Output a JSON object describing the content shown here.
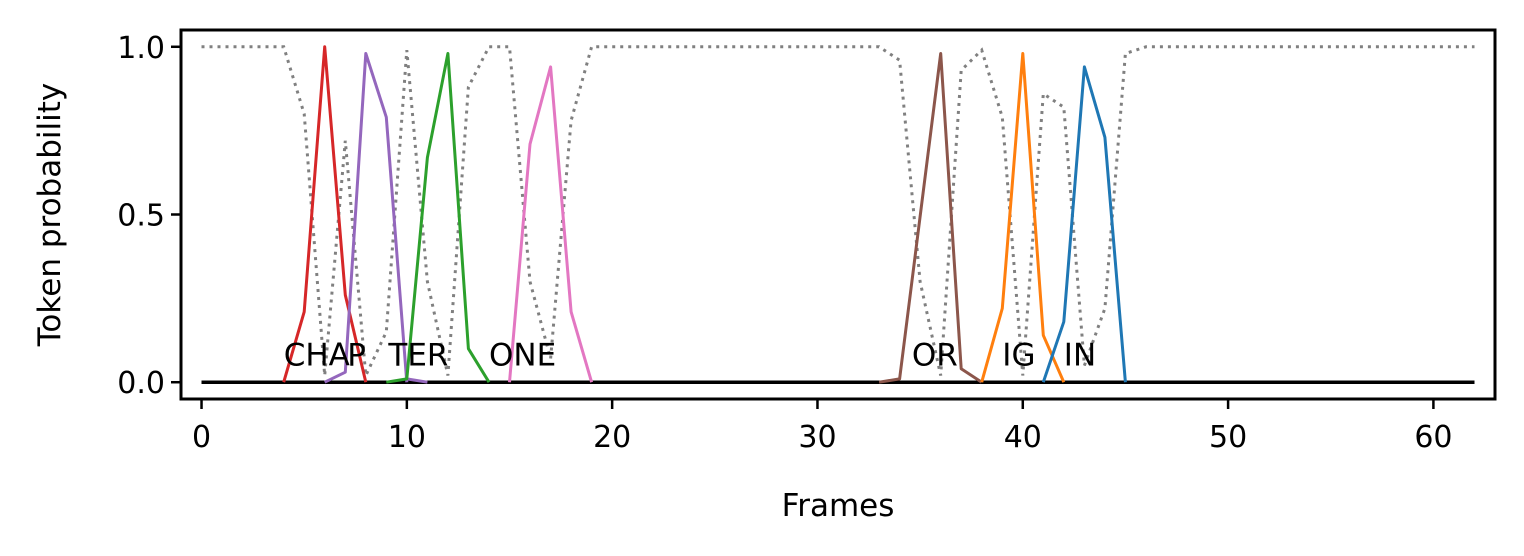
{
  "chart_data": {
    "type": "line",
    "xlabel": "Frames",
    "ylabel": "Token probability",
    "xlim": [
      -1,
      63
    ],
    "ylim": [
      -0.05,
      1.05
    ],
    "x_ticks": [
      0,
      10,
      20,
      30,
      40,
      50,
      60
    ],
    "y_ticks": [
      0.0,
      0.5,
      1.0
    ],
    "x_tick_labels": [
      "0",
      "10",
      "20",
      "30",
      "40",
      "50",
      "60"
    ],
    "y_tick_labels": [
      "0.0",
      "0.5",
      "1.0"
    ],
    "legend": "none",
    "grid": false,
    "baseline": {
      "color": "#000000",
      "x": [
        0,
        62
      ],
      "y": [
        0,
        0
      ]
    },
    "blank_series": {
      "color": "#808080",
      "style": "dotted",
      "x": [
        0,
        1,
        2,
        3,
        4,
        5,
        6,
        7,
        8,
        9,
        10,
        11,
        12,
        13,
        14,
        15,
        16,
        17,
        18,
        19,
        20,
        30,
        33,
        34,
        35,
        36,
        37,
        38,
        39,
        40,
        41,
        42,
        43,
        44,
        45,
        46,
        50,
        62
      ],
      "y": [
        1.0,
        1.0,
        1.0,
        1.0,
        1.0,
        0.8,
        0.02,
        0.72,
        0.02,
        0.15,
        0.99,
        0.3,
        0.02,
        0.88,
        1.0,
        1.0,
        0.3,
        0.07,
        0.78,
        1.0,
        1.0,
        1.0,
        1.0,
        0.96,
        0.3,
        0.02,
        0.93,
        0.99,
        0.79,
        0.02,
        0.86,
        0.82,
        0.05,
        0.22,
        0.98,
        1.0,
        1.0,
        1.0
      ]
    },
    "series": [
      {
        "color": "#d62728",
        "x": [
          4,
          5,
          6,
          7,
          8
        ],
        "y": [
          0.0,
          0.21,
          1.0,
          0.26,
          0.0
        ]
      },
      {
        "color": "#9467bd",
        "x": [
          6,
          7,
          8,
          9,
          10
        ],
        "y": [
          0.0,
          0.03,
          0.98,
          0.79,
          0.0
        ]
      },
      {
        "color": "#9467bd",
        "x": [
          10,
          11
        ],
        "y": [
          0.01,
          0.0
        ]
      },
      {
        "color": "#2ca02c",
        "x": [
          9,
          10,
          11,
          12,
          13,
          14
        ],
        "y": [
          0.0,
          0.01,
          0.67,
          0.98,
          0.1,
          0.0
        ]
      },
      {
        "color": "#e377c2",
        "x": [
          15,
          16,
          17,
          18,
          19
        ],
        "y": [
          0.0,
          0.71,
          0.94,
          0.21,
          0.0
        ]
      },
      {
        "color": "#8c564b",
        "x": [
          33,
          34,
          36,
          37,
          38
        ],
        "y": [
          0.0,
          0.01,
          0.98,
          0.04,
          0.0
        ]
      },
      {
        "color": "#ff7f0e",
        "x": [
          38,
          39,
          40,
          41,
          42
        ],
        "y": [
          0.0,
          0.22,
          0.98,
          0.14,
          0.0
        ]
      },
      {
        "color": "#1f77b4",
        "x": [
          41,
          42,
          43,
          44,
          45
        ],
        "y": [
          0.0,
          0.18,
          0.94,
          0.73,
          0.0
        ]
      }
    ],
    "annotations": [
      {
        "text": "CHA",
        "x": 4,
        "y": 0.05
      },
      {
        "text": "P",
        "x": 7.1,
        "y": 0.05
      },
      {
        "text": "TER",
        "x": 9.1,
        "y": 0.05
      },
      {
        "text": "ONE",
        "x": 14,
        "y": 0.05
      },
      {
        "text": "OR",
        "x": 34.6,
        "y": 0.05
      },
      {
        "text": "IG",
        "x": 39,
        "y": 0.05
      },
      {
        "text": "IN",
        "x": 42,
        "y": 0.05
      }
    ]
  }
}
